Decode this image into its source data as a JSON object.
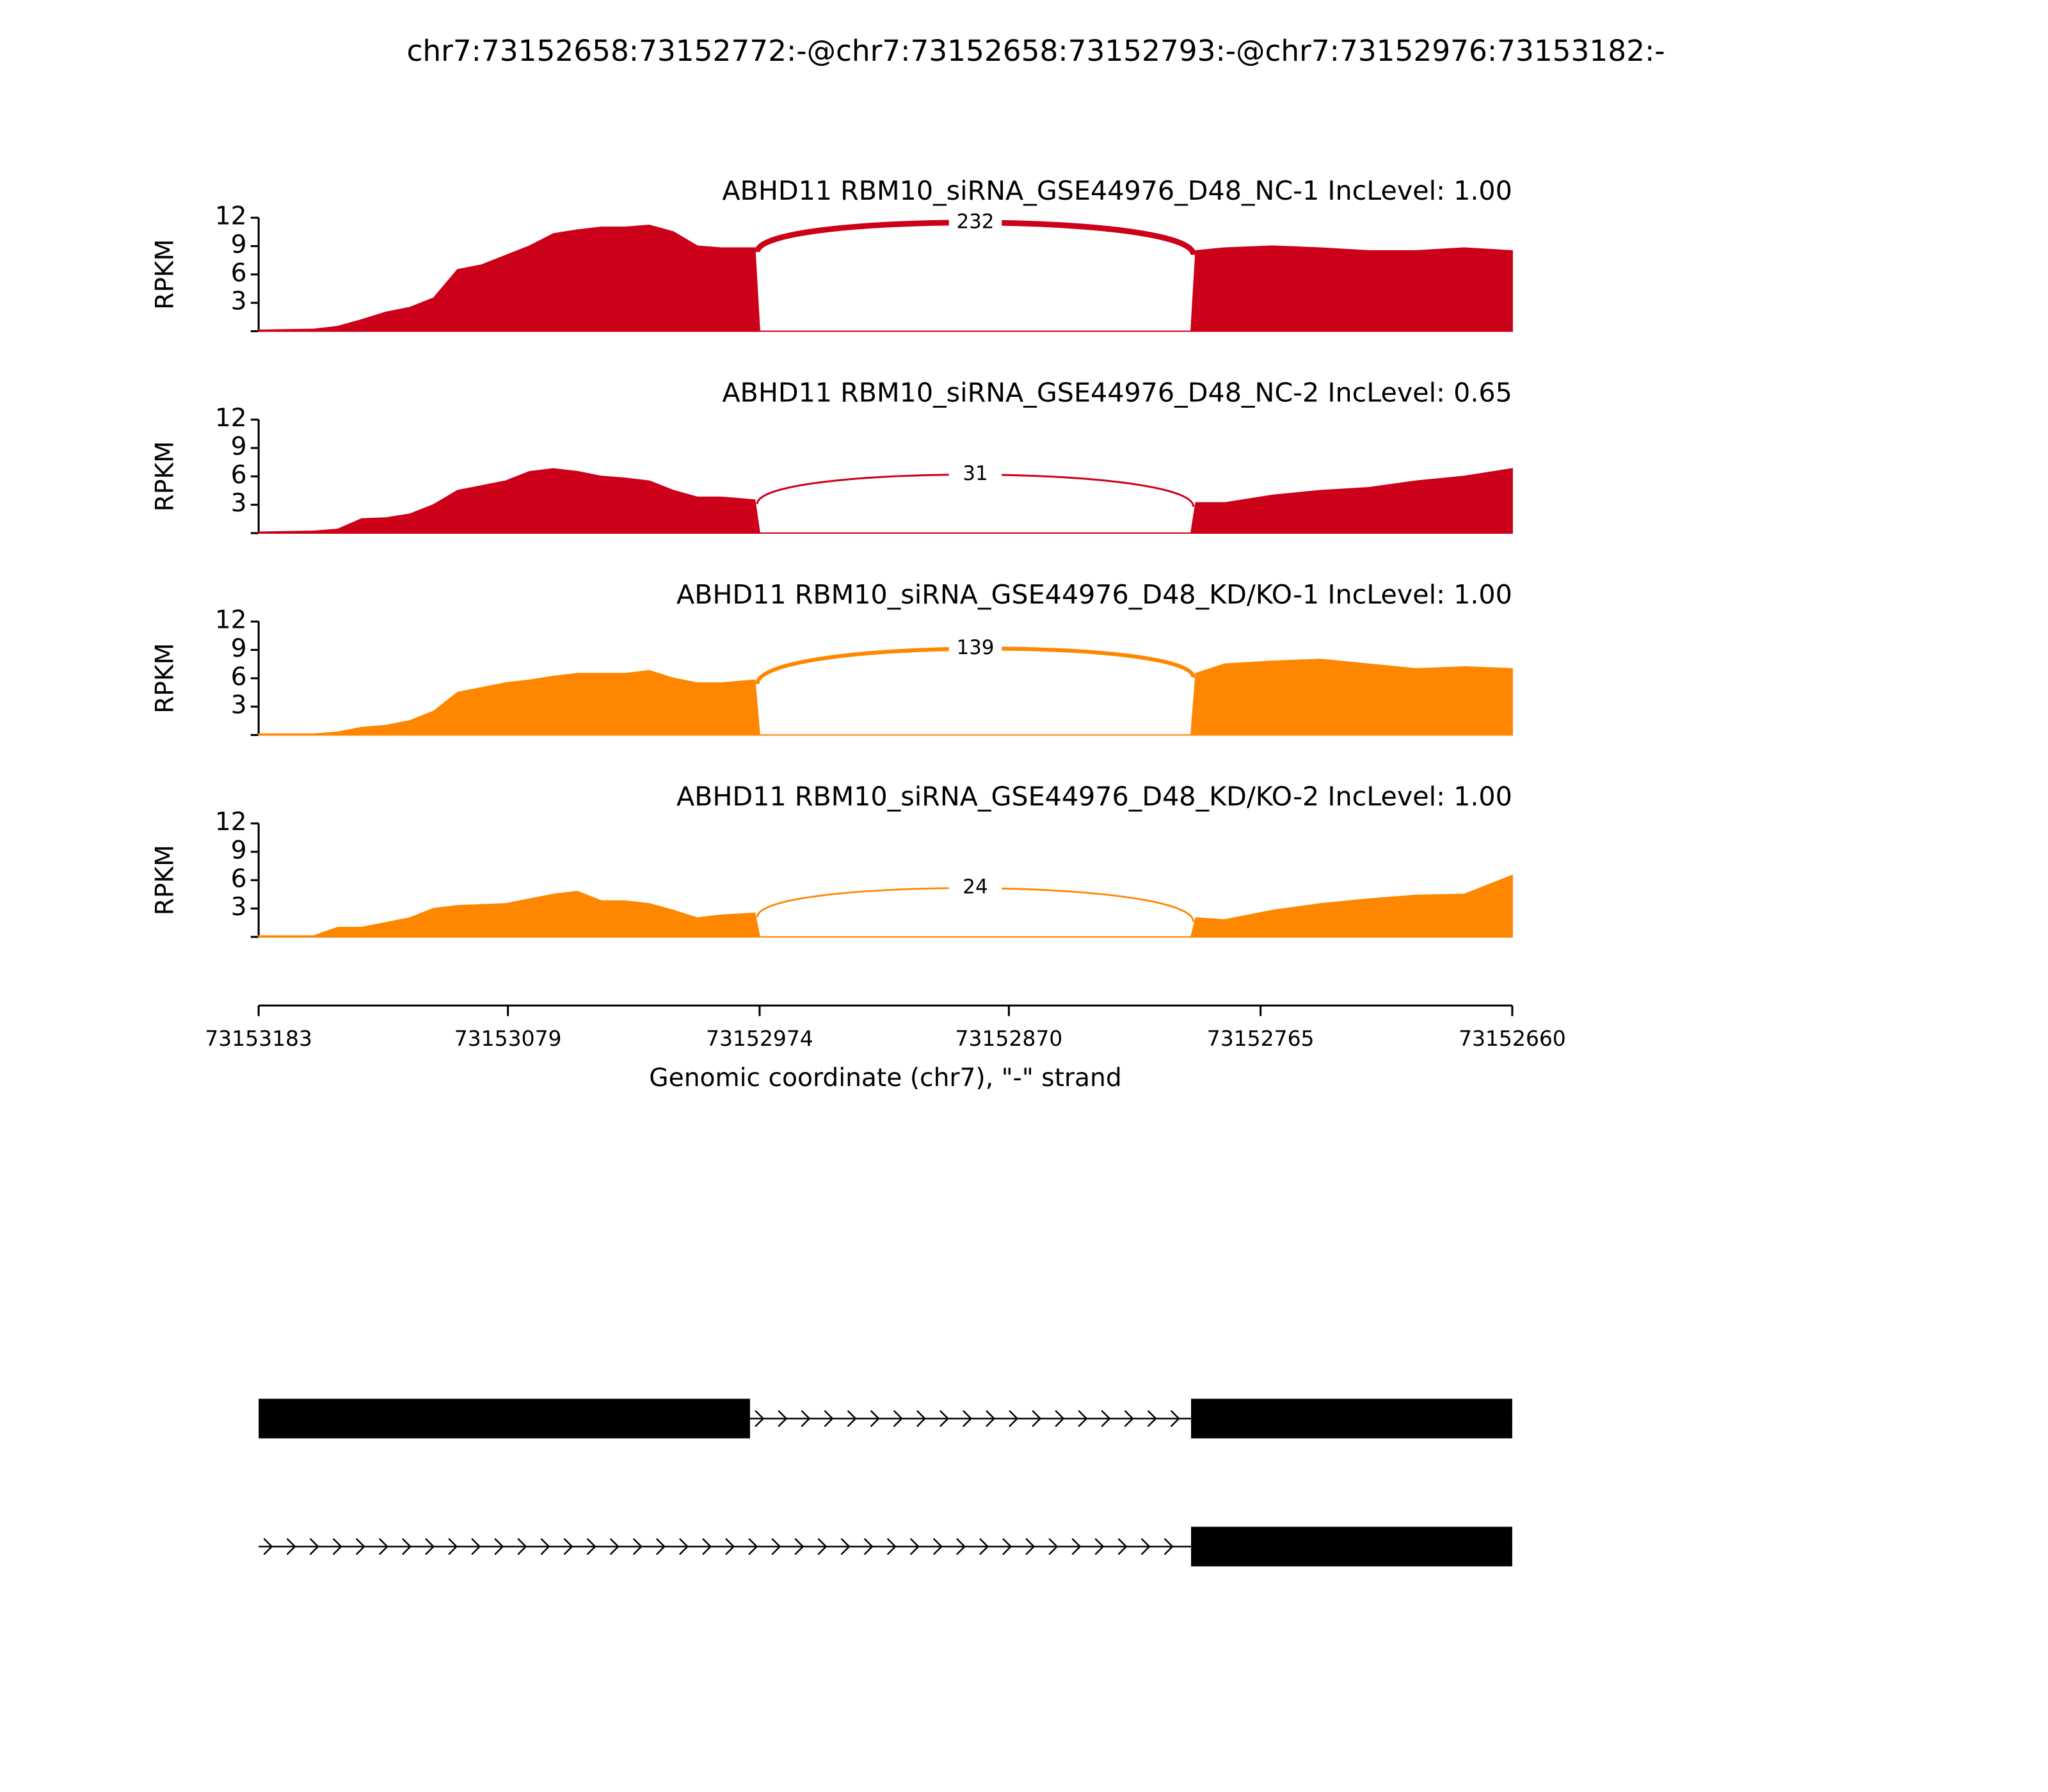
{
  "chart_data": {
    "type": "sashimi",
    "title": "chr7:73152658:73152772:-@chr7:73152658:73152793:-@chr7:73152976:73153182:-",
    "xlabel": "Genomic coordinate (chr7), \"-\" strand",
    "xlim": [
      73153183,
      73152660
    ],
    "xticks": [
      73153183,
      73153079,
      73152974,
      73152870,
      73152765,
      73152660
    ],
    "x": [
      73153183,
      73153160,
      73153150,
      73153140,
      73153130,
      73153120,
      73153110,
      73153100,
      73153090,
      73153080,
      73153070,
      73153060,
      73153050,
      73153040,
      73153030,
      73153020,
      73153010,
      73153000,
      73152990,
      73152976,
      73152974,
      73152794,
      73152792,
      73152780,
      73152760,
      73152740,
      73152720,
      73152700,
      73152680,
      73152660
    ],
    "ylim": [
      0,
      12
    ],
    "yticks": [
      3,
      6,
      9,
      12
    ],
    "ylabel": "RPKM",
    "panels": [
      {
        "title": "ABHD11 RBM10_siRNA_GSE44976_D48_NC-1 IncLevel: 1.00",
        "color": "#cc0018",
        "values": [
          0.1,
          0.2,
          0.5,
          1.2,
          2,
          2.5,
          3.5,
          6.5,
          7,
          8,
          9,
          10.3,
          10.7,
          11,
          11,
          11.2,
          10.5,
          9,
          8.8,
          8.8,
          0,
          0,
          8.5,
          8.8,
          9,
          8.8,
          8.5,
          8.5,
          8.8,
          8.5
        ],
        "junction": {
          "x": [
            73152975,
            73152793
          ],
          "count": 232
        }
      },
      {
        "title": "ABHD11 RBM10_siRNA_GSE44976_D48_NC-2 IncLevel: 0.65",
        "color": "#cc0018",
        "values": [
          0.1,
          0.2,
          0.4,
          1.5,
          1.6,
          2,
          3,
          4.5,
          5,
          5.5,
          6.5,
          6.8,
          6.5,
          6,
          5.8,
          5.5,
          4.5,
          3.8,
          3.8,
          3.5,
          0,
          0,
          3.2,
          3.2,
          4,
          4.5,
          4.8,
          5.5,
          6,
          6.8
        ],
        "junction": {
          "x": [
            73152975,
            73152793
          ],
          "count": 31
        }
      },
      {
        "title": "ABHD11 RBM10_siRNA_GSE44976_D48_KD/KO-1 IncLevel: 1.00",
        "color": "#ff8700",
        "values": [
          0.1,
          0.1,
          0.3,
          0.8,
          1,
          1.5,
          2.5,
          4.5,
          5,
          5.5,
          5.8,
          6.2,
          6.5,
          6.5,
          6.5,
          6.8,
          6,
          5.5,
          5.5,
          5.8,
          0,
          0,
          6.5,
          7.5,
          7.8,
          8,
          7.5,
          7,
          7.2,
          7
        ],
        "junction": {
          "x": [
            73152975,
            73152793
          ],
          "count": 139
        }
      },
      {
        "title": "ABHD11 RBM10_siRNA_GSE44976_D48_KD/KO-2 IncLevel: 1.00",
        "color": "#ff8700",
        "values": [
          0.1,
          0.1,
          1,
          1,
          1.5,
          2,
          3,
          3.3,
          3.4,
          3.5,
          4,
          4.5,
          4.8,
          3.8,
          3.8,
          3.5,
          2.8,
          2,
          2.3,
          2.5,
          0,
          0,
          2,
          1.8,
          2.8,
          3.5,
          4,
          4.4,
          4.5,
          6.5
        ],
        "junction": {
          "x": [
            73152975,
            73152793
          ],
          "count": 24
        }
      }
    ],
    "gene_models": [
      {
        "exons": [
          [
            73153183,
            73152978
          ],
          [
            73152794,
            73152660
          ]
        ]
      },
      {
        "exons": [
          [
            73152794,
            73152660
          ]
        ]
      }
    ]
  }
}
